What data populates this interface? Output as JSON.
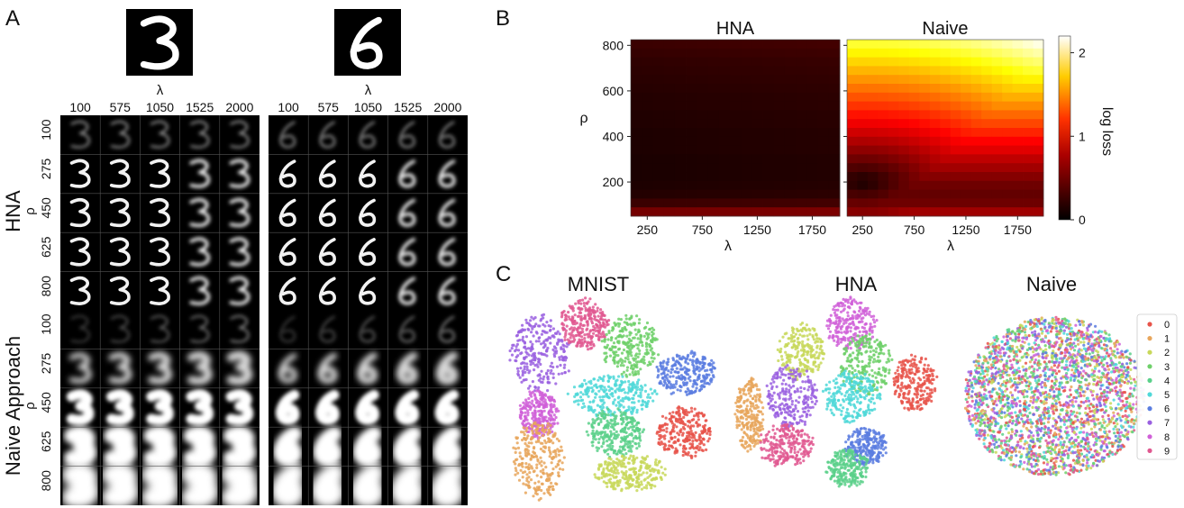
{
  "panel_labels": {
    "a": "A",
    "b": "B",
    "c": "C"
  },
  "panel_a": {
    "digits": [
      "3",
      "6"
    ],
    "lambda_label": "λ",
    "rho_label": "ρ",
    "lambda_ticks": [
      "100",
      "575",
      "1050",
      "1525",
      "2000"
    ],
    "rho_ticks": [
      "100",
      "275",
      "450",
      "625",
      "800"
    ],
    "groups": [
      "HNA",
      "Naive Approach"
    ]
  },
  "panel_b": {
    "chart_data": [
      {
        "type": "heatmap",
        "title": "HNA",
        "xlabel": "λ",
        "ylabel": "ρ",
        "xticks": [
          "250",
          "750",
          "1250",
          "1750"
        ],
        "yticks": [
          "200",
          "400",
          "600",
          "800"
        ],
        "xlim": [
          100,
          2000
        ],
        "ylim": [
          50,
          825
        ],
        "value_rows_top_to_bottom": [
          0.2,
          0.18,
          0.16,
          0.15,
          0.14,
          0.13,
          0.12,
          0.12,
          0.11,
          0.11,
          0.1,
          0.1,
          0.1,
          0.09,
          0.09,
          0.09,
          0.1,
          0.12,
          0.2,
          0.4
        ],
        "colorbar_label": "log loss",
        "colorbar_ticks": [
          "0",
          "1",
          "2"
        ],
        "colorbar_range": [
          0,
          2.2
        ]
      },
      {
        "type": "heatmap",
        "title": "Naive",
        "xlabel": "λ",
        "ylabel": "ρ",
        "xticks": [
          "250",
          "750",
          "1250",
          "1750"
        ],
        "yticks": [
          "200",
          "400",
          "600",
          "800"
        ],
        "xlim": [
          100,
          2000
        ],
        "ylim": [
          50,
          825
        ],
        "value_rows_top_to_bottom": [
          2.15,
          2.05,
          1.95,
          1.85,
          1.72,
          1.6,
          1.48,
          1.36,
          1.24,
          1.12,
          1.0,
          0.88,
          0.78,
          0.66,
          0.56,
          0.46,
          0.38,
          0.34,
          0.38,
          0.55
        ],
        "low_spot": {
          "lambda": 250,
          "rho": 200,
          "value": 0.08
        },
        "colorbar_label": "log loss",
        "colorbar_ticks": [
          "0",
          "1",
          "2"
        ],
        "colorbar_range": [
          0,
          2.2
        ]
      }
    ]
  },
  "panel_c": {
    "chart_data": {
      "type": "scatter",
      "titles": [
        "MNIST",
        "HNA",
        "Naive"
      ],
      "legend_entries": [
        "0",
        "1",
        "2",
        "3",
        "4",
        "5",
        "6",
        "7",
        "8",
        "9"
      ],
      "legend_position": "right",
      "colors": [
        "#e8544a",
        "#e8a65c",
        "#c8d85a",
        "#6fd06a",
        "#5ad08a",
        "#4fd8d8",
        "#5a7de0",
        "#9a60e0",
        "#d060d8",
        "#e05890"
      ]
    }
  }
}
